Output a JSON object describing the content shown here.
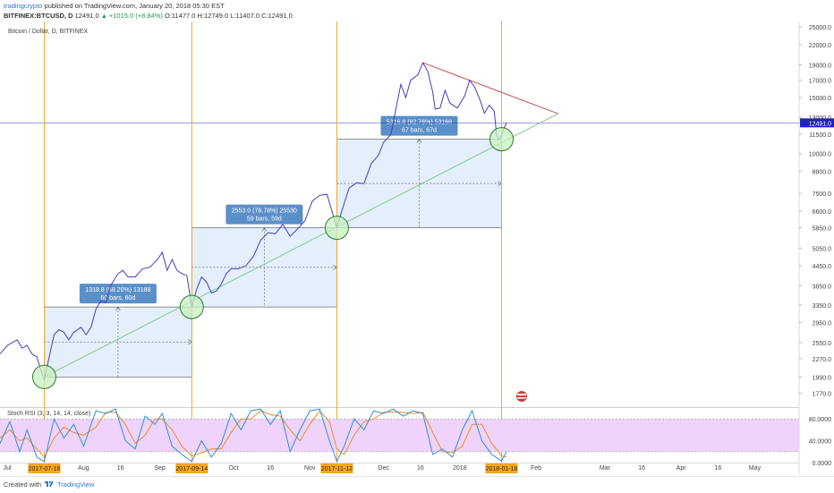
{
  "header": {
    "author": "tradingcrypto",
    "published": "published on TradingView.com, January 20, 2018 05:30 EST",
    "symbol": "BITFINEX:BTCUSD, D",
    "last": "12491.0",
    "change": "+1015.0 (+8.84%)",
    "ohlc": "O:11477.0 H:12749.0 L:11407.0 C:12491.0"
  },
  "footer": {
    "created_with": "Created with",
    "brand": "TradingView"
  },
  "colors": {
    "price_line": "#3f3fbf",
    "vertical_line": "#f5a623",
    "range_box": "#dbe9fb",
    "label_box": "#5a8fc8",
    "rsi_band": "#efd3fa",
    "rsi_k": "#2f8fd8",
    "rsi_d": "#f08a24",
    "circle": "#c8f0c0",
    "trend_red": "#c0504d",
    "current_price": "#2020c0"
  },
  "chart_data": {
    "type": "line",
    "title": "Bitcoin / Dollar, D, BITFINEX",
    "y_scale": "log",
    "ylim": [
      1600,
      26000
    ],
    "y_ticks": [
      25000,
      22000,
      19000,
      17000,
      15000,
      13000,
      11500,
      10000,
      8800,
      7500,
      6600,
      5850,
      5050,
      4450,
      3850,
      3350,
      2950,
      2550,
      2270,
      1990,
      1770
    ],
    "y_tick_labels": [
      "25000.0",
      "22000.0",
      "19000.0",
      "17000.0",
      "15000.0",
      "13000.0",
      "11500.0",
      "10000.0",
      "8800.0",
      "7500.0",
      "6600.0",
      "5850.0",
      "5050.0",
      "4450.0",
      "3850.0",
      "3350.0",
      "2950.0",
      "2550.0",
      "2270.0",
      "1990.0",
      "1770.0"
    ],
    "current_price_label": "12491.0",
    "x_range": [
      "2017-06-28",
      "2018-05-19"
    ],
    "x_ticks": [
      {
        "date": "2017-07-01",
        "label": "Jul"
      },
      {
        "date": "2017-08-01",
        "label": "Aug"
      },
      {
        "date": "2017-08-16",
        "label": "16"
      },
      {
        "date": "2017-09-01",
        "label": "Sep"
      },
      {
        "date": "2017-10-01",
        "label": "Oct"
      },
      {
        "date": "2017-10-16",
        "label": "16"
      },
      {
        "date": "2017-11-01",
        "label": "Nov"
      },
      {
        "date": "2017-12-01",
        "label": "Dec"
      },
      {
        "date": "2017-12-16",
        "label": "16"
      },
      {
        "date": "2018-01-01",
        "label": "2018"
      },
      {
        "date": "2018-02-01",
        "label": "Feb"
      },
      {
        "date": "2018-03-01",
        "label": "Mar"
      },
      {
        "date": "2018-03-16",
        "label": "16"
      },
      {
        "date": "2018-04-01",
        "label": "Apr"
      },
      {
        "date": "2018-04-16",
        "label": "16"
      },
      {
        "date": "2018-05-01",
        "label": "May"
      }
    ],
    "marked_dates": [
      "2017-07-16",
      "2017-09-14",
      "2017-11-12",
      "2018-01-18"
    ],
    "marked_labels": [
      "2017-07-16",
      "2017-09-14",
      "2017-11-12",
      "2018-01-18"
    ],
    "series": [
      {
        "points": [
          [
            "2017-06-28",
            2350
          ],
          [
            "2017-07-01",
            2500
          ],
          [
            "2017-07-03",
            2550
          ],
          [
            "2017-07-05",
            2600
          ],
          [
            "2017-07-07",
            2450
          ],
          [
            "2017-07-09",
            2500
          ],
          [
            "2017-07-11",
            2350
          ],
          [
            "2017-07-13",
            2300
          ],
          [
            "2017-07-15",
            2050
          ],
          [
            "2017-07-16",
            1950
          ],
          [
            "2017-07-18",
            2300
          ],
          [
            "2017-07-20",
            2700
          ],
          [
            "2017-07-22",
            2800
          ],
          [
            "2017-07-24",
            2750
          ],
          [
            "2017-07-26",
            2600
          ],
          [
            "2017-07-28",
            2750
          ],
          [
            "2017-07-31",
            2850
          ],
          [
            "2017-08-02",
            2700
          ],
          [
            "2017-08-04",
            2850
          ],
          [
            "2017-08-06",
            3250
          ],
          [
            "2017-08-08",
            3450
          ],
          [
            "2017-08-10",
            3400
          ],
          [
            "2017-08-12",
            3850
          ],
          [
            "2017-08-15",
            4200
          ],
          [
            "2017-08-17",
            4300
          ],
          [
            "2017-08-19",
            4100
          ],
          [
            "2017-08-22",
            4100
          ],
          [
            "2017-08-25",
            4350
          ],
          [
            "2017-08-28",
            4400
          ],
          [
            "2017-08-31",
            4650
          ],
          [
            "2017-09-02",
            4900
          ],
          [
            "2017-09-04",
            4300
          ],
          [
            "2017-09-06",
            4650
          ],
          [
            "2017-09-08",
            4300
          ],
          [
            "2017-09-10",
            4200
          ],
          [
            "2017-09-12",
            4150
          ],
          [
            "2017-09-14",
            3300
          ],
          [
            "2017-09-16",
            3750
          ],
          [
            "2017-09-18",
            4100
          ],
          [
            "2017-09-20",
            3950
          ],
          [
            "2017-09-22",
            3650
          ],
          [
            "2017-09-24",
            3700
          ],
          [
            "2017-09-26",
            3900
          ],
          [
            "2017-09-28",
            4200
          ],
          [
            "2017-09-30",
            4350
          ],
          [
            "2017-10-03",
            4350
          ],
          [
            "2017-10-06",
            4450
          ],
          [
            "2017-10-09",
            4750
          ],
          [
            "2017-10-12",
            5350
          ],
          [
            "2017-10-15",
            5650
          ],
          [
            "2017-10-18",
            5600
          ],
          [
            "2017-10-21",
            6000
          ],
          [
            "2017-10-24",
            5500
          ],
          [
            "2017-10-27",
            5800
          ],
          [
            "2017-10-30",
            6150
          ],
          [
            "2017-11-02",
            7100
          ],
          [
            "2017-11-05",
            7400
          ],
          [
            "2017-11-08",
            7450
          ],
          [
            "2017-11-10",
            6600
          ],
          [
            "2017-11-12",
            5850
          ],
          [
            "2017-11-14",
            6600
          ],
          [
            "2017-11-17",
            7800
          ],
          [
            "2017-11-20",
            8100
          ],
          [
            "2017-11-23",
            8050
          ],
          [
            "2017-11-26",
            9300
          ],
          [
            "2017-11-29",
            9900
          ],
          [
            "2017-12-01",
            10850
          ],
          [
            "2017-12-04",
            11500
          ],
          [
            "2017-12-06",
            13800
          ],
          [
            "2017-12-08",
            16500
          ],
          [
            "2017-12-10",
            15000
          ],
          [
            "2017-12-12",
            17000
          ],
          [
            "2017-12-15",
            17700
          ],
          [
            "2017-12-17",
            19300
          ],
          [
            "2017-12-19",
            18100
          ],
          [
            "2017-12-21",
            15600
          ],
          [
            "2017-12-22",
            13800
          ],
          [
            "2017-12-24",
            13900
          ],
          [
            "2017-12-26",
            15800
          ],
          [
            "2017-12-28",
            14400
          ],
          [
            "2017-12-31",
            13900
          ],
          [
            "2018-01-03",
            15200
          ],
          [
            "2018-01-05",
            17000
          ],
          [
            "2018-01-07",
            16200
          ],
          [
            "2018-01-09",
            14900
          ],
          [
            "2018-01-11",
            13400
          ],
          [
            "2018-01-13",
            14200
          ],
          [
            "2018-01-15",
            13600
          ],
          [
            "2018-01-16",
            11400
          ],
          [
            "2018-01-17",
            11100
          ],
          [
            "2018-01-18",
            11450
          ],
          [
            "2018-01-19",
            12000
          ],
          [
            "2018-01-20",
            12491
          ]
        ]
      }
    ],
    "ranges": [
      {
        "start": "2017-07-16",
        "end": "2017-09-14",
        "low": 1990,
        "high": 3300,
        "label": "1318.8 (68.20%) 13188",
        "sublabel": "60 bars, 60d"
      },
      {
        "start": "2017-09-14",
        "end": "2017-11-12",
        "low": 3300,
        "high": 5850,
        "label": "2553.0 (78.78%) 25530",
        "sublabel": "59 bars, 59d"
      },
      {
        "start": "2017-11-12",
        "end": "2018-01-18",
        "low": 5850,
        "high": 11100,
        "label": "5316.8 (92.76%) 53168",
        "sublabel": "67 bars, 67d"
      }
    ],
    "circles": [
      {
        "date": "2017-07-16",
        "price": 1990
      },
      {
        "date": "2017-09-14",
        "price": 3300
      },
      {
        "date": "2017-11-12",
        "price": 5850
      },
      {
        "date": "2018-01-18",
        "price": 11100
      }
    ],
    "trendlines": [
      {
        "from": [
          "2017-07-16",
          1990
        ],
        "to": [
          "2018-02-10",
          13350
        ],
        "color": "green"
      },
      {
        "from": [
          "2017-12-17",
          19300
        ],
        "to": [
          "2018-02-10",
          13350
        ],
        "color": "red"
      }
    ],
    "rsi": {
      "title": "Stoch RSI (3, 3, 14, 14, close)",
      "ylim": [
        0,
        100
      ],
      "band": [
        20,
        80
      ],
      "y_tick_labels": [
        "80.0000",
        "40.0000",
        "0.0000"
      ],
      "y_ticks": [
        80,
        40,
        0
      ],
      "k": [
        [
          "2017-06-28",
          35
        ],
        [
          "2017-07-02",
          75
        ],
        [
          "2017-07-06",
          20
        ],
        [
          "2017-07-09",
          60
        ],
        [
          "2017-07-13",
          10
        ],
        [
          "2017-07-16",
          2
        ],
        [
          "2017-07-20",
          80
        ],
        [
          "2017-07-24",
          45
        ],
        [
          "2017-07-28",
          70
        ],
        [
          "2017-08-01",
          30
        ],
        [
          "2017-08-06",
          95
        ],
        [
          "2017-08-10",
          90
        ],
        [
          "2017-08-14",
          98
        ],
        [
          "2017-08-18",
          40
        ],
        [
          "2017-08-22",
          25
        ],
        [
          "2017-08-26",
          85
        ],
        [
          "2017-08-30",
          70
        ],
        [
          "2017-09-02",
          90
        ],
        [
          "2017-09-06",
          30
        ],
        [
          "2017-09-10",
          15
        ],
        [
          "2017-09-14",
          2
        ],
        [
          "2017-09-18",
          40
        ],
        [
          "2017-09-22",
          10
        ],
        [
          "2017-09-26",
          35
        ],
        [
          "2017-09-30",
          90
        ],
        [
          "2017-10-04",
          60
        ],
        [
          "2017-10-08",
          95
        ],
        [
          "2017-10-12",
          98
        ],
        [
          "2017-10-16",
          70
        ],
        [
          "2017-10-20",
          95
        ],
        [
          "2017-10-24",
          20
        ],
        [
          "2017-10-28",
          60
        ],
        [
          "2017-11-01",
          95
        ],
        [
          "2017-11-05",
          98
        ],
        [
          "2017-11-09",
          40
        ],
        [
          "2017-11-12",
          2
        ],
        [
          "2017-11-15",
          30
        ],
        [
          "2017-11-19",
          80
        ],
        [
          "2017-11-23",
          60
        ],
        [
          "2017-11-27",
          95
        ],
        [
          "2017-12-01",
          90
        ],
        [
          "2017-12-05",
          98
        ],
        [
          "2017-12-09",
          85
        ],
        [
          "2017-12-13",
          95
        ],
        [
          "2017-12-17",
          90
        ],
        [
          "2017-12-21",
          15
        ],
        [
          "2017-12-25",
          25
        ],
        [
          "2017-12-29",
          10
        ],
        [
          "2018-01-02",
          60
        ],
        [
          "2018-01-06",
          95
        ],
        [
          "2018-01-10",
          40
        ],
        [
          "2018-01-14",
          15
        ],
        [
          "2018-01-18",
          3
        ],
        [
          "2018-01-20",
          20
        ]
      ],
      "d": [
        [
          "2017-06-28",
          45
        ],
        [
          "2017-07-02",
          60
        ],
        [
          "2017-07-06",
          40
        ],
        [
          "2017-07-09",
          45
        ],
        [
          "2017-07-13",
          25
        ],
        [
          "2017-07-16",
          10
        ],
        [
          "2017-07-20",
          45
        ],
        [
          "2017-07-24",
          65
        ],
        [
          "2017-07-28",
          55
        ],
        [
          "2017-08-01",
          50
        ],
        [
          "2017-08-06",
          65
        ],
        [
          "2017-08-10",
          92
        ],
        [
          "2017-08-14",
          92
        ],
        [
          "2017-08-18",
          70
        ],
        [
          "2017-08-22",
          35
        ],
        [
          "2017-08-26",
          50
        ],
        [
          "2017-08-30",
          80
        ],
        [
          "2017-09-02",
          80
        ],
        [
          "2017-09-06",
          60
        ],
        [
          "2017-09-10",
          30
        ],
        [
          "2017-09-14",
          12
        ],
        [
          "2017-09-18",
          18
        ],
        [
          "2017-09-22",
          25
        ],
        [
          "2017-09-26",
          25
        ],
        [
          "2017-09-30",
          55
        ],
        [
          "2017-10-04",
          80
        ],
        [
          "2017-10-08",
          80
        ],
        [
          "2017-10-12",
          95
        ],
        [
          "2017-10-16",
          88
        ],
        [
          "2017-10-20",
          85
        ],
        [
          "2017-10-24",
          60
        ],
        [
          "2017-10-28",
          40
        ],
        [
          "2017-11-01",
          70
        ],
        [
          "2017-11-05",
          95
        ],
        [
          "2017-11-09",
          75
        ],
        [
          "2017-11-12",
          25
        ],
        [
          "2017-11-15",
          15
        ],
        [
          "2017-11-19",
          50
        ],
        [
          "2017-11-23",
          75
        ],
        [
          "2017-11-27",
          80
        ],
        [
          "2017-12-01",
          92
        ],
        [
          "2017-12-05",
          93
        ],
        [
          "2017-12-09",
          92
        ],
        [
          "2017-12-13",
          90
        ],
        [
          "2017-12-17",
          92
        ],
        [
          "2017-12-21",
          55
        ],
        [
          "2017-12-25",
          20
        ],
        [
          "2017-12-29",
          18
        ],
        [
          "2018-01-02",
          30
        ],
        [
          "2018-01-06",
          70
        ],
        [
          "2018-01-10",
          70
        ],
        [
          "2018-01-14",
          35
        ],
        [
          "2018-01-18",
          12
        ],
        [
          "2018-01-20",
          10
        ]
      ]
    }
  }
}
